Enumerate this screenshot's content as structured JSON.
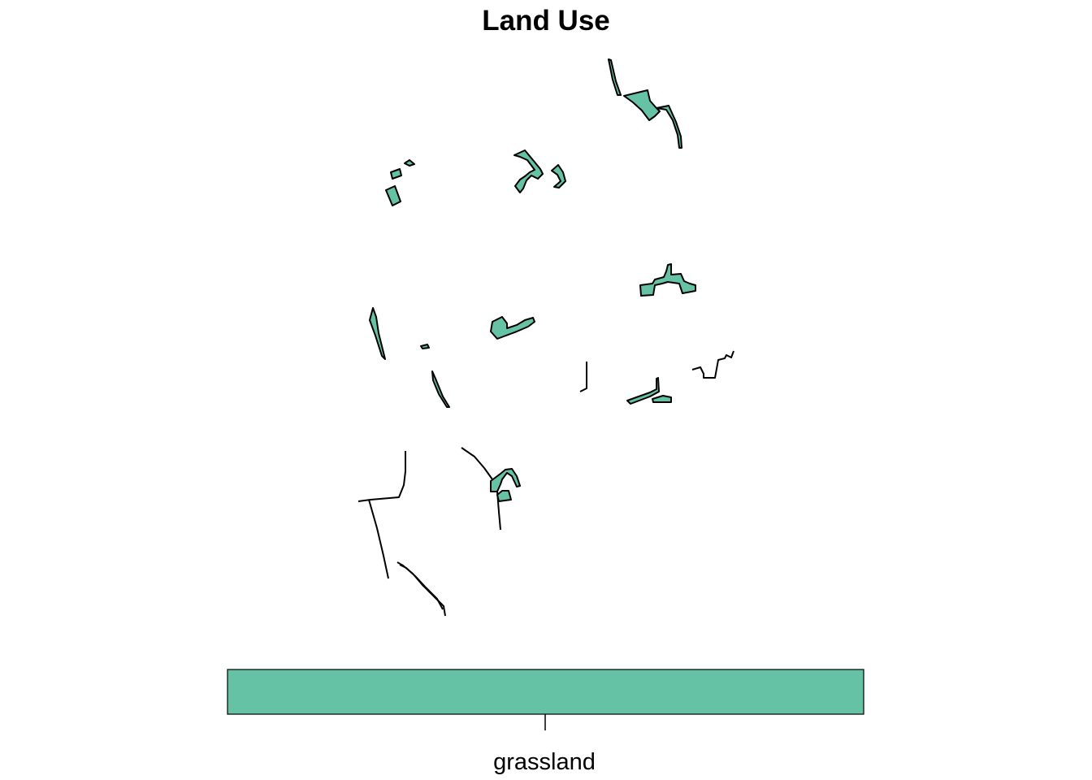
{
  "map": {
    "title": "Land Use",
    "fill_color": "#66C2A5",
    "stroke_color": "#000000"
  },
  "legend": {
    "type": "categorical-colorbar",
    "categories": [
      {
        "label": "grassland",
        "color": "#66C2A5"
      }
    ]
  }
}
